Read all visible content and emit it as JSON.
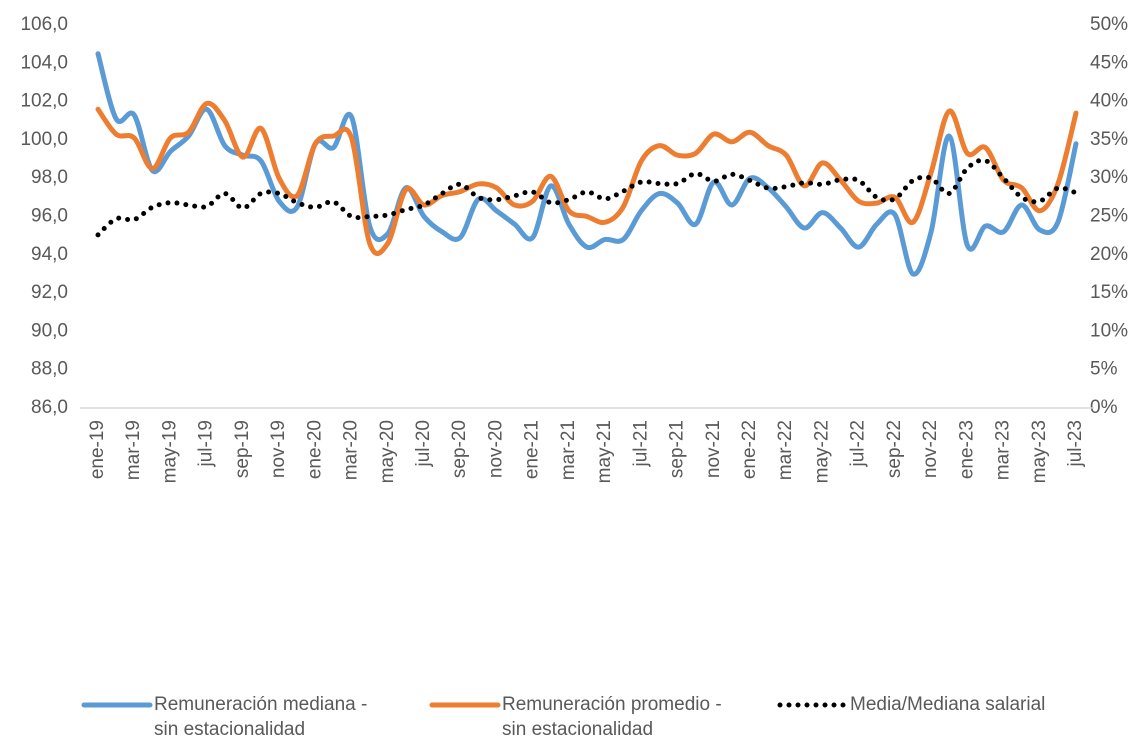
{
  "chart_data": {
    "type": "line",
    "categories": [
      "ene-19",
      null,
      "mar-19",
      null,
      "may-19",
      null,
      "jul-19",
      null,
      "sep-19",
      null,
      "nov-19",
      null,
      "ene-20",
      null,
      "mar-20",
      null,
      "may-20",
      null,
      "jul-20",
      null,
      "sep-20",
      null,
      "nov-20",
      null,
      "ene-21",
      null,
      "mar-21",
      null,
      "may-21",
      null,
      "jul-21",
      null,
      "sep-21",
      null,
      "nov-21",
      null,
      "ene-22",
      null,
      "mar-22",
      null,
      "may-22",
      null,
      "jul-22",
      null,
      "sep-22",
      null,
      "nov-22",
      null,
      "ene-23",
      null,
      "mar-23",
      null,
      "may-23",
      null,
      "jul-23"
    ],
    "series": [
      {
        "name": "Remuneración mediana - sin estacionalidad",
        "color": "#5b9bd5",
        "style": "solid",
        "values": [
          104.5,
          101.1,
          101.3,
          98.4,
          99.4,
          100.2,
          101.6,
          99.7,
          99.2,
          98.9,
          96.8,
          96.5,
          99.8,
          99.6,
          101.2,
          95.5,
          95.1,
          97.5,
          96.0,
          95.2,
          94.9,
          96.9,
          96.3,
          95.6,
          94.9,
          97.6,
          95.6,
          94.4,
          94.8,
          94.8,
          96.3,
          97.2,
          96.7,
          95.6,
          97.8,
          96.6,
          98.0,
          97.5,
          96.5,
          95.4,
          96.2,
          95.4,
          94.4,
          95.6,
          96.1,
          93.0,
          95.2,
          100.2,
          94.5,
          95.5,
          95.2,
          96.6,
          95.3,
          95.7,
          99.8
        ]
      },
      {
        "name": "Remuneración promedio - sin estacionalidad",
        "color": "#ed7d31",
        "style": "solid",
        "values": [
          101.6,
          100.3,
          100.1,
          98.5,
          100.1,
          100.4,
          101.9,
          101.0,
          99.1,
          100.6,
          98.0,
          97.1,
          99.8,
          100.2,
          100.1,
          94.6,
          94.6,
          97.4,
          96.6,
          97.1,
          97.3,
          97.7,
          97.5,
          96.6,
          96.8,
          98.1,
          96.3,
          96.0,
          95.7,
          96.5,
          98.9,
          99.7,
          99.2,
          99.3,
          100.3,
          99.9,
          100.4,
          99.7,
          99.2,
          97.6,
          98.8,
          97.9,
          96.8,
          96.7,
          97.0,
          95.7,
          98.3,
          101.5,
          99.3,
          99.6,
          97.9,
          97.5,
          96.3,
          97.7,
          101.4
        ]
      },
      {
        "name": "Media/Mediana salarial",
        "color": "#000000",
        "style": "dotted",
        "axis": "y2",
        "values": [
          22.6,
          24.7,
          24.6,
          26.2,
          26.8,
          26.5,
          26.3,
          28.0,
          26.1,
          28.0,
          28.0,
          26.8,
          26.2,
          26.9,
          25.0,
          25.0,
          25.2,
          25.9,
          26.5,
          28.0,
          29.2,
          27.5,
          27.2,
          27.7,
          28.2,
          26.8,
          27.2,
          28.2,
          27.3,
          28.3,
          29.5,
          29.3,
          29.3,
          30.6,
          29.6,
          30.5,
          29.7,
          28.7,
          28.9,
          29.4,
          29.2,
          29.8,
          29.7,
          27.5,
          27.3,
          29.7,
          30.0,
          28.0,
          31.3,
          32.3,
          30.0,
          27.5,
          27.0,
          28.7,
          28.1
        ]
      }
    ],
    "ylim": [
      86,
      106
    ],
    "yticks": [
      {
        "value": 86,
        "label": "86,0"
      },
      {
        "value": 88,
        "label": "88,0"
      },
      {
        "value": 90,
        "label": "90,0"
      },
      {
        "value": 92,
        "label": "92,0"
      },
      {
        "value": 94,
        "label": "94,0"
      },
      {
        "value": 96,
        "label": "96,0"
      },
      {
        "value": 98,
        "label": "98,0"
      },
      {
        "value": 100,
        "label": "100,0"
      },
      {
        "value": 102,
        "label": "102,0"
      },
      {
        "value": 104,
        "label": "104,0"
      },
      {
        "value": 106,
        "label": "106,0"
      }
    ],
    "y2lim": [
      0,
      50
    ],
    "y2ticks": [
      {
        "value": 0,
        "label": "0%"
      },
      {
        "value": 5,
        "label": "5%"
      },
      {
        "value": 10,
        "label": "10%"
      },
      {
        "value": 15,
        "label": "15%"
      },
      {
        "value": 20,
        "label": "20%"
      },
      {
        "value": 25,
        "label": "25%"
      },
      {
        "value": 30,
        "label": "30%"
      },
      {
        "value": 35,
        "label": "35%"
      },
      {
        "value": 40,
        "label": "40%"
      },
      {
        "value": 45,
        "label": "45%"
      },
      {
        "value": 50,
        "label": "50%"
      }
    ],
    "smooth": true,
    "legend": "bottom"
  }
}
